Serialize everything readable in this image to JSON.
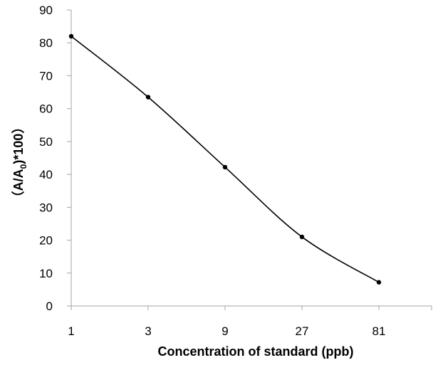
{
  "chart_data": {
    "type": "line",
    "xlabel": "Concentration of standard (ppb)",
    "ylabel_parts": {
      "open": "（A/A",
      "subscript": "0",
      "close": ")*100）"
    },
    "categories": [
      "1",
      "3",
      "9",
      "27",
      "81"
    ],
    "series": [
      {
        "values": [
          82,
          63.5,
          42.2,
          21,
          7.2
        ],
        "color": "#000000"
      }
    ],
    "ylim": [
      0,
      90
    ],
    "yticks": [
      0,
      10,
      20,
      30,
      40,
      50,
      60,
      70,
      80,
      90
    ],
    "grid": false,
    "smooth": true
  }
}
